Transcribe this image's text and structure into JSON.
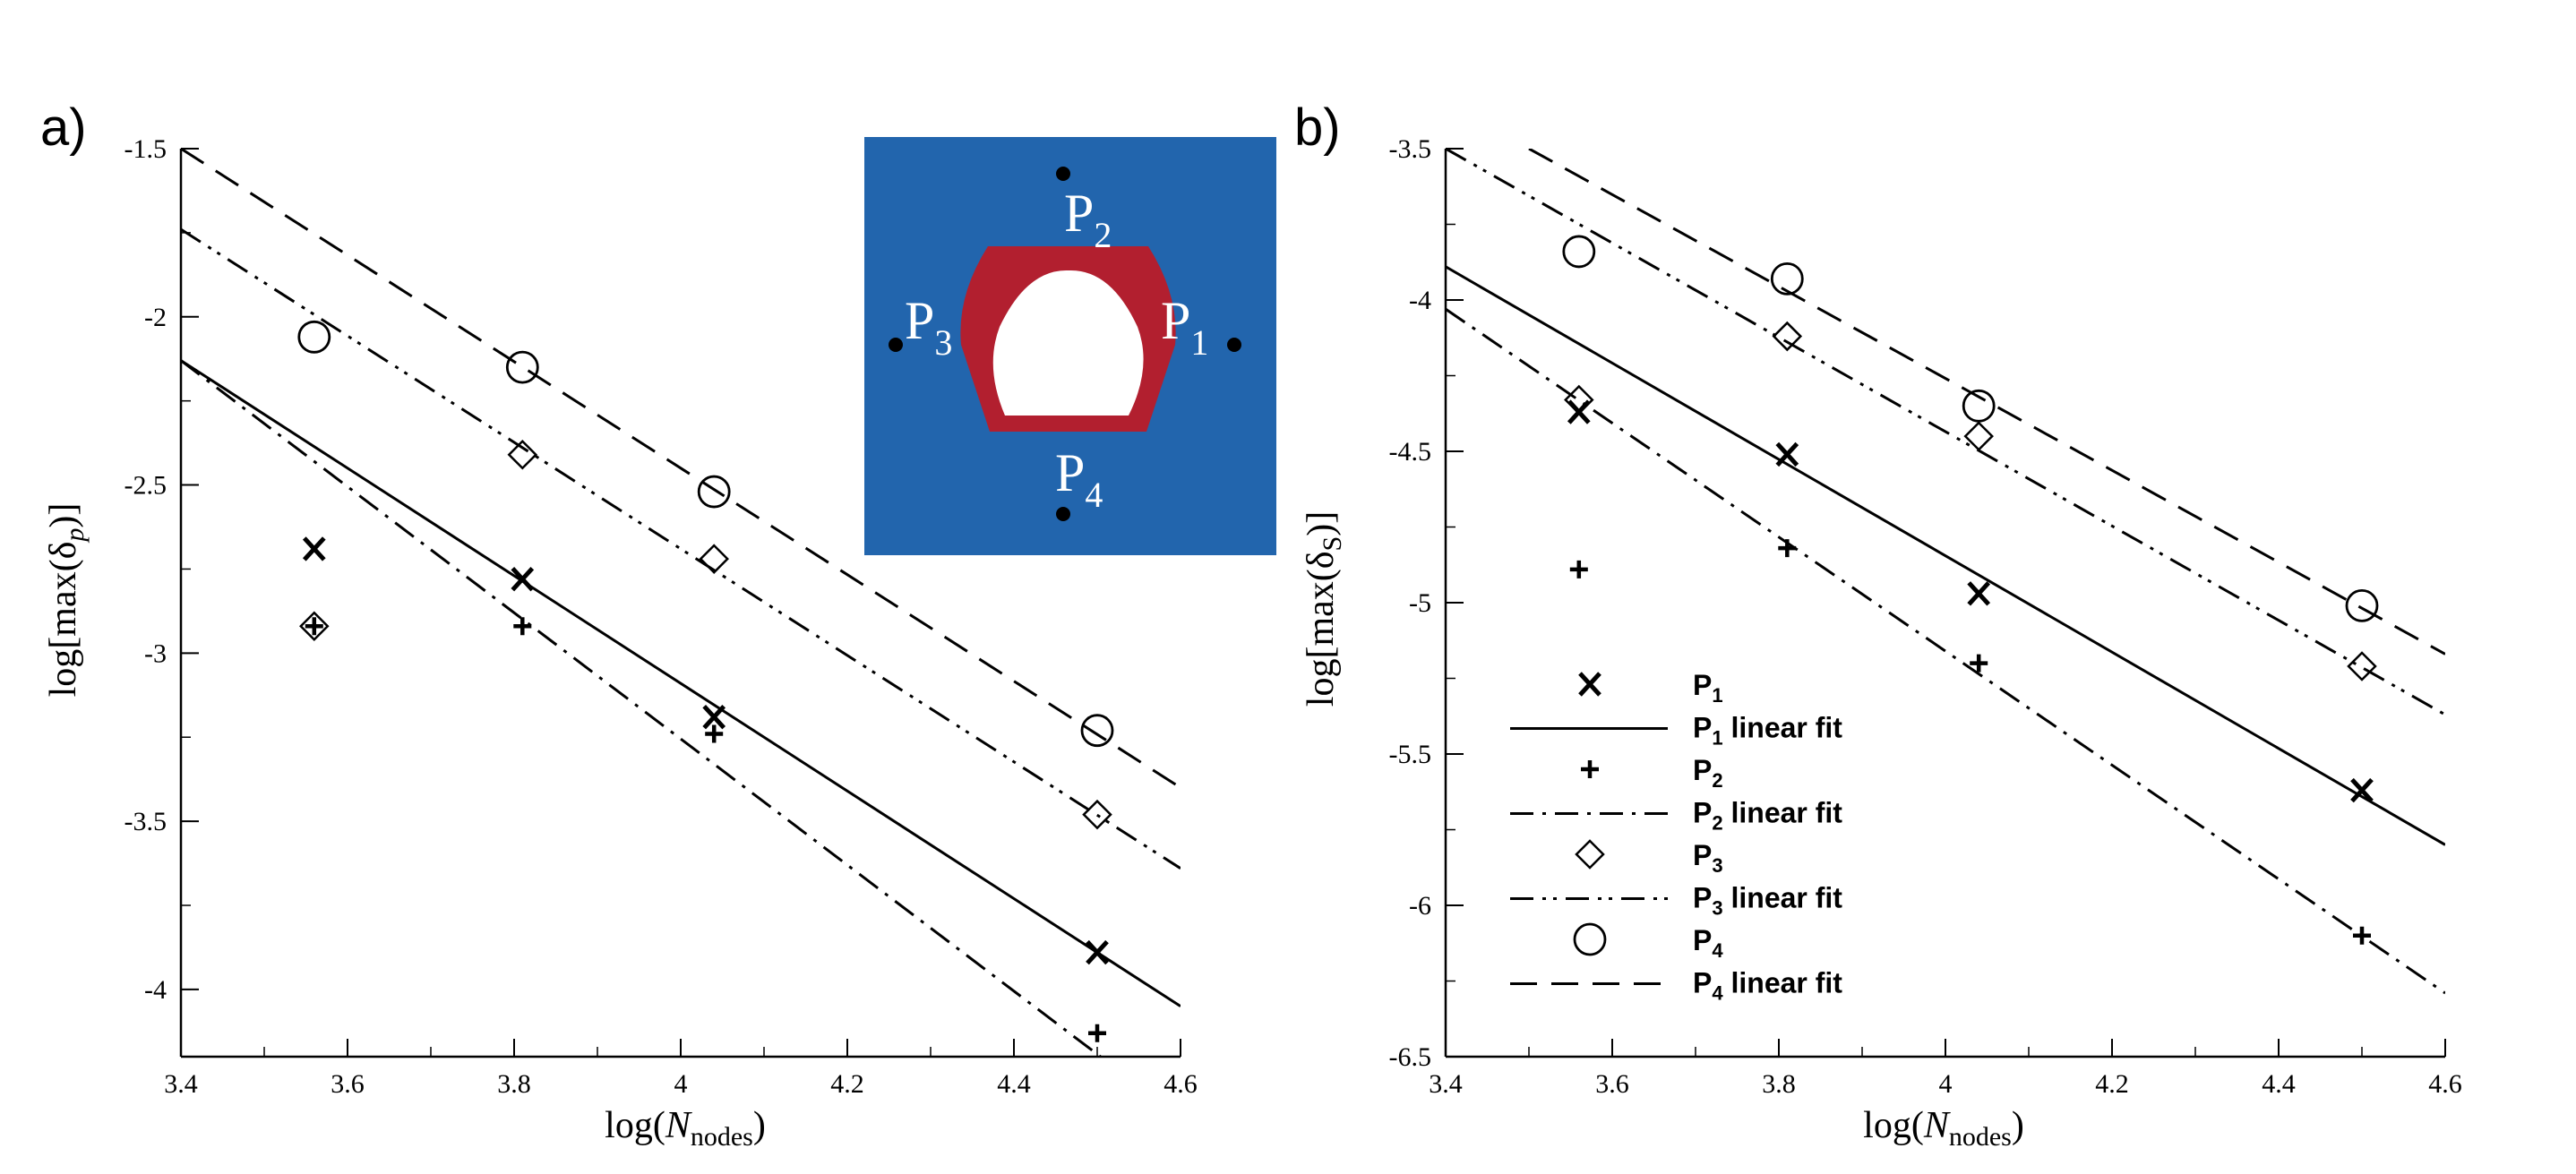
{
  "colors": {
    "inset_bg": "#2265ad",
    "tunnel_ring": "#b21f2f",
    "ink": "#000000"
  },
  "chart_data": [
    {
      "type": "scatter",
      "panel": "a)",
      "xlabel": {
        "pre": "log(",
        "var": "N",
        "sub": "nodes",
        "post": ")"
      },
      "ylabel": {
        "pre": "log[max(δ",
        "sub": "p",
        "post": ")]"
      },
      "xlim": [
        3.4,
        4.6
      ],
      "ylim": [
        -4.2,
        -1.5
      ],
      "xticks": [
        3.4,
        3.6,
        3.8,
        4,
        4.2,
        4.4,
        4.6
      ],
      "xtick_labels": [
        "3.4",
        "3.6",
        "3.8",
        "4",
        "4.2",
        "4.4",
        "4.6"
      ],
      "yticks": [
        -1.5,
        -2,
        -2.5,
        -3,
        -3.5,
        -4
      ],
      "ytick_labels": [
        "-1.5",
        "-2",
        "-2.5",
        "-3",
        "-3.5",
        "-4"
      ],
      "series": [
        {
          "name": "P1",
          "marker": "x",
          "x": [
            3.56,
            3.81,
            4.04,
            4.5
          ],
          "y": [
            -2.69,
            -2.78,
            -3.19,
            -3.89
          ]
        },
        {
          "name": "P2",
          "marker": "plus",
          "x": [
            3.56,
            3.81,
            4.04,
            4.5
          ],
          "y": [
            -2.92,
            -2.92,
            -3.24,
            -4.13
          ]
        },
        {
          "name": "P3",
          "marker": "diamond",
          "x": [
            3.56,
            3.81,
            4.04,
            4.5
          ],
          "y": [
            -2.92,
            -2.41,
            -2.72,
            -3.48
          ]
        },
        {
          "name": "P4",
          "marker": "circle",
          "x": [
            3.56,
            3.81,
            4.04,
            4.5
          ],
          "y": [
            -2.06,
            -2.15,
            -2.52,
            -3.23
          ]
        }
      ],
      "fits": [
        {
          "name": "P1 linear fit",
          "style": "solid",
          "x": [
            3.4,
            4.6
          ],
          "y": [
            -2.13,
            -4.05
          ]
        },
        {
          "name": "P2 linear fit",
          "style": "dashdot",
          "x": [
            3.4,
            4.6
          ],
          "y": [
            -2.13,
            -4.38
          ]
        },
        {
          "name": "P3 linear fit",
          "style": "dashdotdot",
          "x": [
            3.4,
            4.6
          ],
          "y": [
            -1.74,
            -3.64
          ]
        },
        {
          "name": "P4 linear fit",
          "style": "dashed",
          "x": [
            3.4,
            4.6
          ],
          "y": [
            -1.5,
            -3.4
          ]
        }
      ]
    },
    {
      "type": "scatter",
      "panel": "b)",
      "xlabel": {
        "pre": "log(",
        "var": "N",
        "sub": "nodes",
        "post": ")"
      },
      "ylabel": {
        "pre": "log[max(δ",
        "sub": "S",
        "post": ")]"
      },
      "xlim": [
        3.4,
        4.6
      ],
      "ylim": [
        -6.5,
        -3.5
      ],
      "xticks": [
        3.4,
        3.6,
        3.8,
        4,
        4.2,
        4.4,
        4.6
      ],
      "xtick_labels": [
        "3.4",
        "3.6",
        "3.8",
        "4",
        "4.2",
        "4.4",
        "4.6"
      ],
      "yticks": [
        -3.5,
        -4,
        -4.5,
        -5,
        -5.5,
        -6,
        -6.5
      ],
      "ytick_labels": [
        "-3.5",
        "-4",
        "-4.5",
        "-5",
        "-5.5",
        "-6",
        "-6.5"
      ],
      "series": [
        {
          "name": "P1",
          "marker": "x",
          "x": [
            3.56,
            3.81,
            4.04,
            4.5
          ],
          "y": [
            -4.37,
            -4.51,
            -4.97,
            -5.62
          ]
        },
        {
          "name": "P2",
          "marker": "plus",
          "x": [
            3.56,
            3.81,
            4.04,
            4.5
          ],
          "y": [
            -4.89,
            -4.82,
            -5.2,
            -6.1
          ]
        },
        {
          "name": "P3",
          "marker": "diamond",
          "x": [
            3.56,
            3.81,
            4.04,
            4.5
          ],
          "y": [
            -4.33,
            -4.12,
            -4.45,
            -5.21
          ]
        },
        {
          "name": "P4",
          "marker": "circle",
          "x": [
            3.56,
            3.81,
            4.04,
            4.5
          ],
          "y": [
            -3.84,
            -3.93,
            -4.35,
            -5.01
          ]
        }
      ],
      "fits": [
        {
          "name": "P1 linear fit",
          "style": "solid",
          "x": [
            3.4,
            4.6
          ],
          "y": [
            -3.89,
            -5.8
          ]
        },
        {
          "name": "P2 linear fit",
          "style": "dashdot",
          "x": [
            3.4,
            4.6
          ],
          "y": [
            -4.03,
            -6.29
          ]
        },
        {
          "name": "P3 linear fit",
          "style": "dashdotdot",
          "x": [
            3.4,
            4.6
          ],
          "y": [
            -3.5,
            -5.37
          ]
        },
        {
          "name": "P4 linear fit",
          "style": "dashed",
          "x": [
            3.5,
            4.6
          ],
          "y": [
            -3.5,
            -5.17
          ]
        }
      ],
      "legend": {
        "placement": "lower-left",
        "entries": [
          {
            "kind": "marker",
            "marker": "x",
            "text": "P",
            "sub": "1",
            "rest": ""
          },
          {
            "kind": "line",
            "style": "solid",
            "text": "P",
            "sub": "1",
            "rest": " linear fit"
          },
          {
            "kind": "marker",
            "marker": "plus",
            "text": "P",
            "sub": "2",
            "rest": ""
          },
          {
            "kind": "line",
            "style": "dashdot",
            "text": "P",
            "sub": "2",
            "rest": " linear fit"
          },
          {
            "kind": "marker",
            "marker": "diamond",
            "text": "P",
            "sub": "3",
            "rest": ""
          },
          {
            "kind": "line",
            "style": "dashdotdot",
            "text": "P",
            "sub": "3",
            "rest": " linear fit"
          },
          {
            "kind": "marker",
            "marker": "circle",
            "text": "P",
            "sub": "4",
            "rest": ""
          },
          {
            "kind": "line",
            "style": "dashed",
            "text": "P",
            "sub": "4",
            "rest": " linear fit"
          }
        ]
      }
    }
  ],
  "inset": {
    "probes": [
      {
        "id": "p1",
        "text": "P",
        "sub": "1"
      },
      {
        "id": "p2",
        "text": "P",
        "sub": "2"
      },
      {
        "id": "p3",
        "text": "P",
        "sub": "3"
      },
      {
        "id": "p4",
        "text": "P",
        "sub": "4"
      }
    ]
  }
}
